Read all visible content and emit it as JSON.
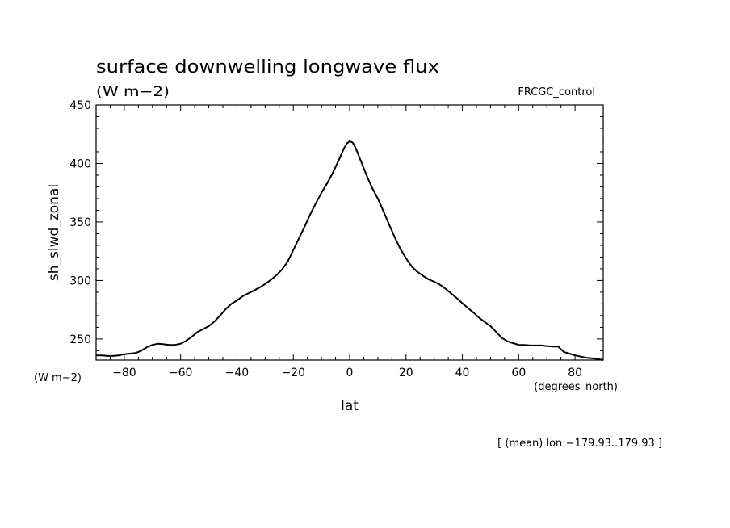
{
  "chart_data": {
    "type": "line",
    "title": "surface downwelling longwave flux",
    "units": "(W m−2)",
    "experiment": "FRCGC_control",
    "ylabel": "sh_slwd_zonal",
    "yunits": "(W m−2)",
    "xlabel": "lat",
    "xunits": "(degrees_north)",
    "footnote": "[ (mean) lon:−179.93..179.93 ]",
    "xlim": [
      -90,
      90
    ],
    "ylim": [
      232,
      450
    ],
    "xticks": [
      -80,
      -60,
      -40,
      -20,
      0,
      20,
      40,
      60,
      80
    ],
    "xtick_labels": [
      "−80",
      "−60",
      "−40",
      "−20",
      "0",
      "20",
      "40",
      "60",
      "80"
    ],
    "yticks": [
      250,
      300,
      350,
      400,
      450
    ],
    "ytick_labels": [
      "250",
      "300",
      "350",
      "400",
      "450"
    ],
    "line_color": "#000000",
    "series": [
      {
        "x": [
          -90,
          -88,
          -86,
          -84,
          -82,
          -80,
          -78,
          -76,
          -74,
          -72,
          -70,
          -68,
          -66,
          -64,
          -62,
          -60,
          -58,
          -56,
          -54,
          -52,
          -50,
          -48,
          -46,
          -44,
          -42,
          -40,
          -38,
          -36,
          -34,
          -32,
          -30,
          -28,
          -26,
          -24,
          -22,
          -20,
          -18,
          -16,
          -14,
          -12,
          -10,
          -8,
          -6,
          -4,
          -2,
          -1,
          0,
          1,
          2,
          4,
          6,
          8,
          10,
          12,
          14,
          16,
          18,
          20,
          22,
          24,
          26,
          28,
          30,
          32,
          34,
          36,
          38,
          40,
          42,
          44,
          46,
          48,
          50,
          52,
          54,
          56,
          58,
          60,
          62,
          64,
          66,
          68,
          70,
          72,
          74,
          76,
          78,
          80,
          82,
          84,
          86,
          88,
          90
        ],
        "values": [
          236,
          236,
          235.5,
          235.5,
          236,
          237,
          237.5,
          238,
          240,
          243,
          245,
          246,
          245.5,
          245,
          245,
          246,
          248.5,
          252,
          256,
          258.5,
          261,
          265,
          270,
          275.5,
          280,
          283,
          286.5,
          289,
          291.5,
          294,
          297,
          300.5,
          304.5,
          309.5,
          316,
          326,
          336,
          346,
          356.5,
          366,
          375,
          383,
          392,
          402,
          413,
          417,
          419,
          418,
          414,
          402,
          390,
          379,
          370,
          359,
          348,
          337,
          327,
          319,
          312,
          307.5,
          304,
          301,
          299,
          296.5,
          293,
          289,
          285,
          280.5,
          276.5,
          272.5,
          268,
          264.5,
          261,
          256,
          251,
          248,
          246.5,
          245,
          245,
          244.5,
          244.5,
          244.5,
          244,
          243.5,
          243.5,
          239,
          237.5,
          236,
          235,
          234,
          233.5,
          233,
          232
        ]
      }
    ]
  }
}
